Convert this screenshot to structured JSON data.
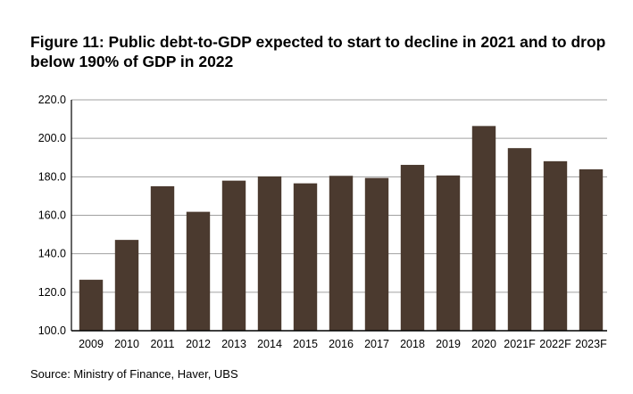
{
  "title": "Figure 11: Public debt-to-GDP expected to start to decline in 2021 and to drop below 190% of GDP in 2022",
  "source": "Source: Ministry of Finance, Haver, UBS",
  "chart_data": {
    "type": "bar",
    "categories": [
      "2009",
      "2010",
      "2011",
      "2012",
      "2013",
      "2014",
      "2015",
      "2016",
      "2017",
      "2018",
      "2019",
      "2020",
      "2021F",
      "2022F",
      "2023F"
    ],
    "values": [
      126.5,
      147.2,
      175.1,
      161.8,
      178.0,
      180.2,
      176.6,
      180.5,
      179.4,
      186.2,
      180.7,
      206.4,
      194.9,
      188.1,
      183.9
    ],
    "ylim": [
      100,
      220
    ],
    "yticks": [
      "100.0",
      "120.0",
      "140.0",
      "160.0",
      "180.0",
      "200.0",
      "220.0"
    ],
    "grid": true,
    "bar_color": "#4b3a2f",
    "xlabel": "",
    "ylabel": ""
  }
}
